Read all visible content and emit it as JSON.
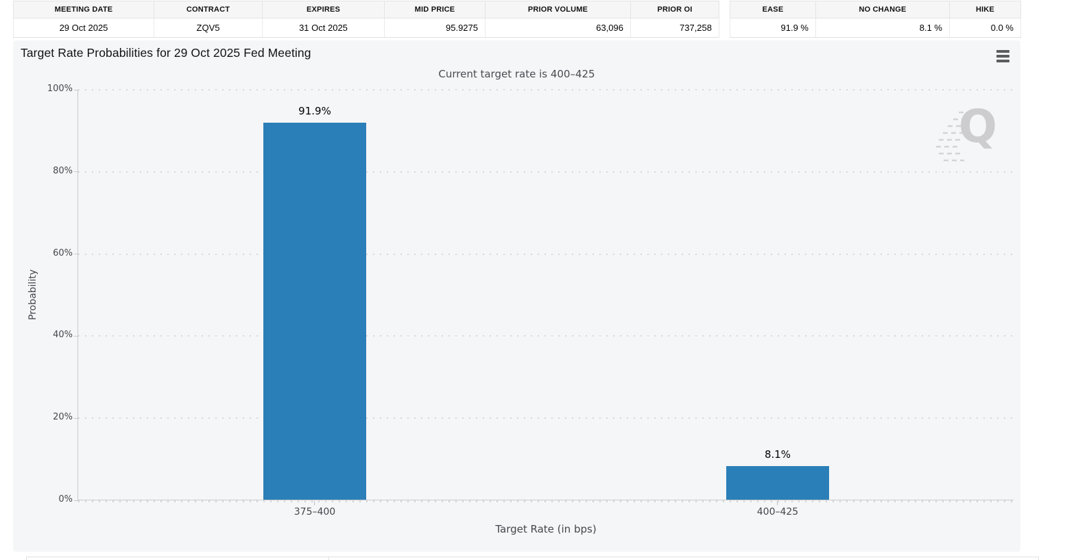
{
  "contract_table": {
    "headers": [
      "MEETING DATE",
      "CONTRACT",
      "EXPIRES",
      "MID PRICE",
      "PRIOR VOLUME",
      "PRIOR OI"
    ],
    "row": [
      "29 Oct 2025",
      "ZQV5",
      "31 Oct 2025",
      "95.9275",
      "63,096",
      "737,258"
    ]
  },
  "probability_table": {
    "headers": [
      "EASE",
      "NO CHANGE",
      "HIKE"
    ],
    "row": [
      "91.9 %",
      "8.1 %",
      "0.0 %"
    ]
  },
  "chart": {
    "title": "Target Rate Probabilities for 29 Oct 2025 Fed Meeting",
    "subtitle": "Current target rate is 400–425",
    "menu_icon": "hamburger-menu-icon",
    "watermark_letter": "Q"
  },
  "chart_data": {
    "type": "bar",
    "categories": [
      "375–400",
      "400–425"
    ],
    "values": [
      91.9,
      8.1
    ],
    "value_labels": [
      "91.9%",
      "8.1%"
    ],
    "title": "Target Rate Probabilities for 29 Oct 2025 Fed Meeting",
    "subtitle": "Current target rate is 400–425",
    "xlabel": "Target Rate (in bps)",
    "ylabel": "Probability",
    "ylim": [
      0,
      100
    ],
    "yticks": [
      "0%",
      "20%",
      "40%",
      "60%",
      "80%",
      "100%"
    ],
    "bar_color": "#2b7fb8",
    "grid": "horizontal-dotted",
    "legend": "none"
  }
}
